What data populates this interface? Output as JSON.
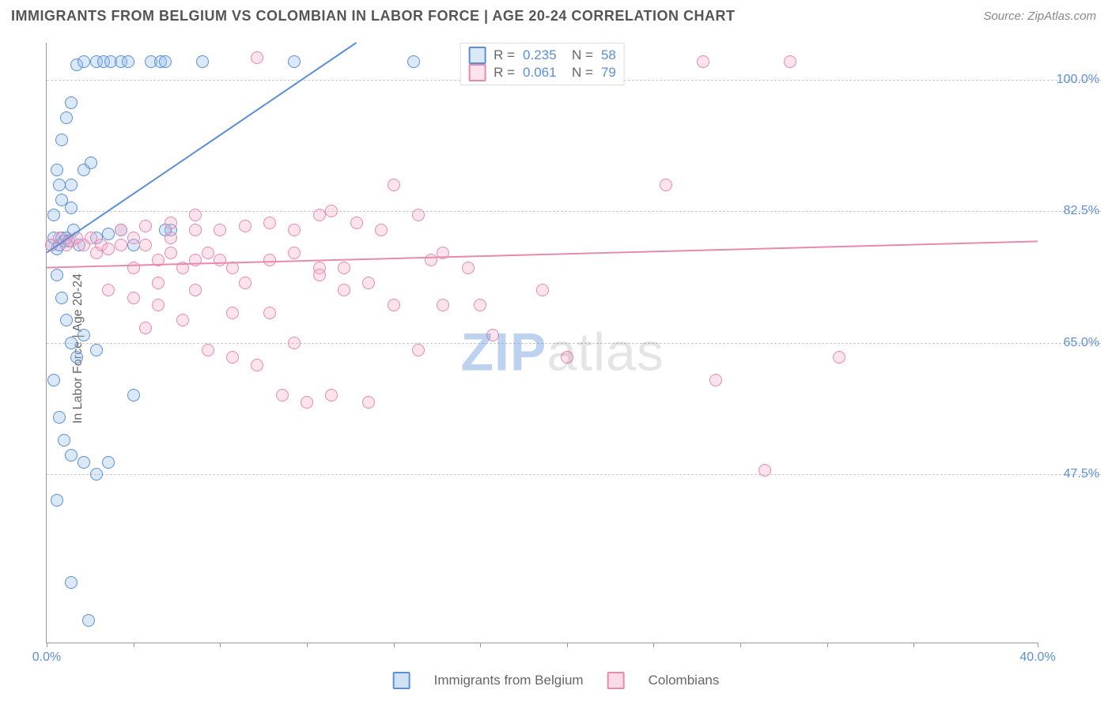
{
  "header": {
    "title": "IMMIGRANTS FROM BELGIUM VS COLOMBIAN IN LABOR FORCE | AGE 20-24 CORRELATION CHART",
    "source": "Source: ZipAtlas.com"
  },
  "watermark": {
    "part1": "ZIP",
    "part2": "atlas"
  },
  "chart": {
    "type": "scatter",
    "ylabel": "In Labor Force | Age 20-24",
    "xlim": [
      0.0,
      40.0
    ],
    "ylim": [
      25.0,
      105.0
    ],
    "xtick_positions": [
      0.0,
      3.5,
      7.0,
      10.5,
      14.0,
      17.5,
      21.0,
      24.5,
      28.0,
      31.5,
      35.0,
      40.0
    ],
    "xtick_labels": {
      "start": "0.0%",
      "end": "40.0%"
    },
    "ytick_positions": [
      47.5,
      65.0,
      82.5,
      100.0
    ],
    "ytick_labels": [
      "47.5%",
      "65.0%",
      "82.5%",
      "100.0%"
    ],
    "background_color": "#ffffff",
    "grid_color": "#cccccc",
    "axis_color": "#999999",
    "label_color": "#666666",
    "tick_label_color": "#5b8fd6",
    "label_fontsize": 16,
    "marker_radius": 8,
    "marker_stroke_width": 1.5,
    "line_width": 2,
    "series": [
      {
        "name": "Immigrants from Belgium",
        "color_stroke": "#5b8fd6",
        "color_fill": "rgba(150,190,235,0.35)",
        "R": 0.235,
        "N": 58,
        "trend": {
          "x1": 0.0,
          "y1": 77.0,
          "x2": 12.5,
          "y2": 105.0
        },
        "points": [
          [
            0.2,
            78
          ],
          [
            0.3,
            79
          ],
          [
            0.4,
            77.5
          ],
          [
            0.5,
            78
          ],
          [
            0.6,
            79
          ],
          [
            0.7,
            78.5
          ],
          [
            0.8,
            79
          ],
          [
            1.0,
            83
          ],
          [
            1.1,
            80
          ],
          [
            0.5,
            86
          ],
          [
            0.6,
            92
          ],
          [
            0.8,
            95
          ],
          [
            1.0,
            97
          ],
          [
            1.2,
            102
          ],
          [
            1.5,
            102.5
          ],
          [
            2.0,
            102.5
          ],
          [
            2.3,
            102.5
          ],
          [
            2.6,
            102.5
          ],
          [
            3.0,
            102.5
          ],
          [
            3.3,
            102.5
          ],
          [
            4.2,
            102.5
          ],
          [
            4.6,
            102.5
          ],
          [
            4.8,
            102.5
          ],
          [
            6.3,
            102.5
          ],
          [
            10.0,
            102.5
          ],
          [
            14.8,
            102.5
          ],
          [
            0.4,
            88
          ],
          [
            0.6,
            84
          ],
          [
            1.0,
            86
          ],
          [
            1.5,
            88
          ],
          [
            1.8,
            89
          ],
          [
            2.0,
            79
          ],
          [
            2.5,
            79.5
          ],
          [
            3.0,
            80
          ],
          [
            3.5,
            78
          ],
          [
            5.0,
            80
          ],
          [
            0.4,
            74
          ],
          [
            0.6,
            71
          ],
          [
            0.8,
            68
          ],
          [
            1.0,
            65
          ],
          [
            1.2,
            63
          ],
          [
            1.5,
            66
          ],
          [
            2.0,
            64
          ],
          [
            0.3,
            60
          ],
          [
            0.5,
            55
          ],
          [
            0.7,
            52
          ],
          [
            1.0,
            50
          ],
          [
            1.5,
            49
          ],
          [
            2.0,
            47.5
          ],
          [
            2.5,
            49
          ],
          [
            3.5,
            58
          ],
          [
            0.4,
            44
          ],
          [
            1.0,
            33
          ],
          [
            1.7,
            28
          ],
          [
            0.3,
            82
          ],
          [
            0.9,
            78.5
          ],
          [
            1.3,
            78
          ],
          [
            4.8,
            80
          ]
        ]
      },
      {
        "name": "Colombians",
        "color_stroke": "#e68ab0",
        "color_fill": "rgba(245,175,200,0.35)",
        "R": 0.061,
        "N": 79,
        "trend": {
          "x1": 0.0,
          "y1": 75.0,
          "x2": 40.0,
          "y2": 78.5
        },
        "points": [
          [
            0.2,
            78
          ],
          [
            0.5,
            79
          ],
          [
            0.8,
            78
          ],
          [
            1.0,
            78.5
          ],
          [
            1.2,
            79
          ],
          [
            1.5,
            78
          ],
          [
            1.8,
            79
          ],
          [
            2.0,
            77
          ],
          [
            2.2,
            78
          ],
          [
            2.5,
            77.5
          ],
          [
            3.0,
            78
          ],
          [
            3.5,
            79
          ],
          [
            4.0,
            78
          ],
          [
            4.5,
            76
          ],
          [
            5.0,
            77
          ],
          [
            5.5,
            75
          ],
          [
            6.0,
            76
          ],
          [
            6.5,
            77
          ],
          [
            7.0,
            76
          ],
          [
            7.5,
            75
          ],
          [
            8.0,
            73
          ],
          [
            3.0,
            80
          ],
          [
            4.0,
            80.5
          ],
          [
            5.0,
            79
          ],
          [
            6.0,
            80
          ],
          [
            9.0,
            76
          ],
          [
            10.0,
            77
          ],
          [
            11.0,
            82
          ],
          [
            11.5,
            82.5
          ],
          [
            12.5,
            81
          ],
          [
            13.5,
            80
          ],
          [
            15.0,
            82
          ],
          [
            16.0,
            77
          ],
          [
            17.0,
            75
          ],
          [
            14.0,
            86
          ],
          [
            15.5,
            76
          ],
          [
            8.5,
            103
          ],
          [
            26.5,
            102.5
          ],
          [
            30.0,
            102.5
          ],
          [
            17.5,
            70
          ],
          [
            18.0,
            66
          ],
          [
            20.0,
            72
          ],
          [
            21.0,
            63
          ],
          [
            25.0,
            86
          ],
          [
            27.0,
            60
          ],
          [
            32.0,
            63
          ],
          [
            29.0,
            48
          ],
          [
            2.5,
            72
          ],
          [
            3.5,
            71
          ],
          [
            4.5,
            70
          ],
          [
            5.5,
            68
          ],
          [
            6.5,
            64
          ],
          [
            7.5,
            63
          ],
          [
            8.5,
            62
          ],
          [
            9.5,
            58
          ],
          [
            10.5,
            57
          ],
          [
            11.5,
            58
          ],
          [
            13.0,
            57
          ],
          [
            4.0,
            67
          ],
          [
            6.0,
            72
          ],
          [
            7.0,
            80
          ],
          [
            8.0,
            80.5
          ],
          [
            9.0,
            81
          ],
          [
            10.0,
            80
          ],
          [
            11.0,
            75
          ],
          [
            12.0,
            72
          ],
          [
            13.0,
            73
          ],
          [
            14.0,
            70
          ],
          [
            9.0,
            69
          ],
          [
            10.0,
            65
          ],
          [
            11.0,
            74
          ],
          [
            12.0,
            75
          ],
          [
            15.0,
            64
          ],
          [
            16.0,
            70
          ],
          [
            5.0,
            81
          ],
          [
            6.0,
            82
          ],
          [
            3.5,
            75
          ],
          [
            4.5,
            73
          ],
          [
            7.5,
            69
          ]
        ]
      }
    ]
  },
  "legend_bottom": [
    {
      "label": "Immigrants from Belgium",
      "stroke": "#5b8fd6",
      "fill": "rgba(150,190,235,0.45)"
    },
    {
      "label": "Colombians",
      "stroke": "#e68ab0",
      "fill": "rgba(245,175,200,0.45)"
    }
  ]
}
